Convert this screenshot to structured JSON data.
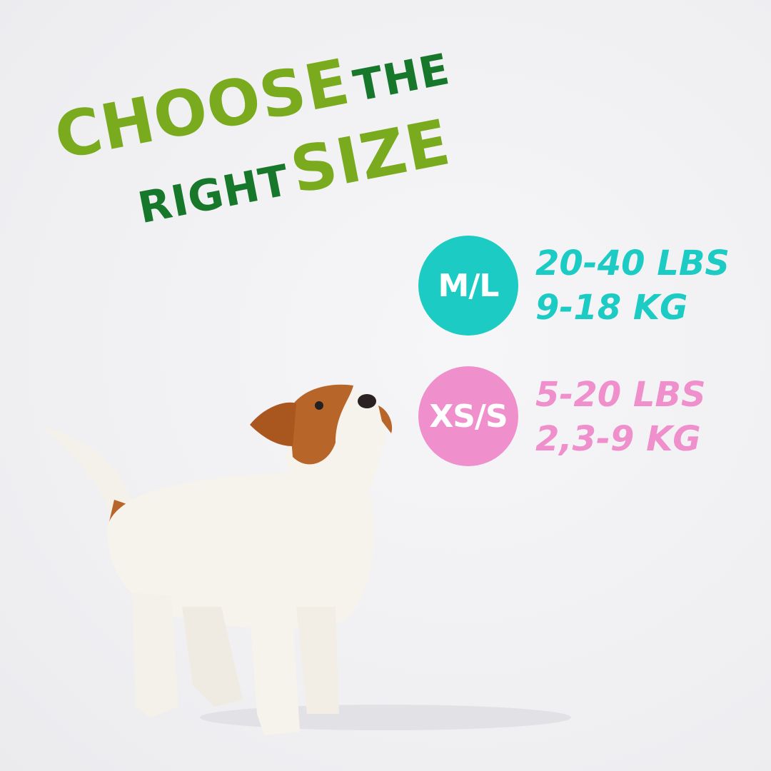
{
  "headline": {
    "choose": "CHOOSE",
    "the": "THE",
    "right": "RIGHT",
    "size": "SIZE"
  },
  "sizes": [
    {
      "label": "M/L",
      "weight_lbs": "20-40 LBS",
      "weight_kg": "9-18 KG",
      "color": "#1ccbc3"
    },
    {
      "label": "XS/S",
      "weight_lbs": "5-20 LBS",
      "weight_kg": "2,3-9 KG",
      "color": "#ef8fcb"
    }
  ],
  "colors": {
    "light_green": "#7aab1e",
    "dark_green": "#17782c"
  },
  "image": {
    "subject": "puppy-photo"
  }
}
